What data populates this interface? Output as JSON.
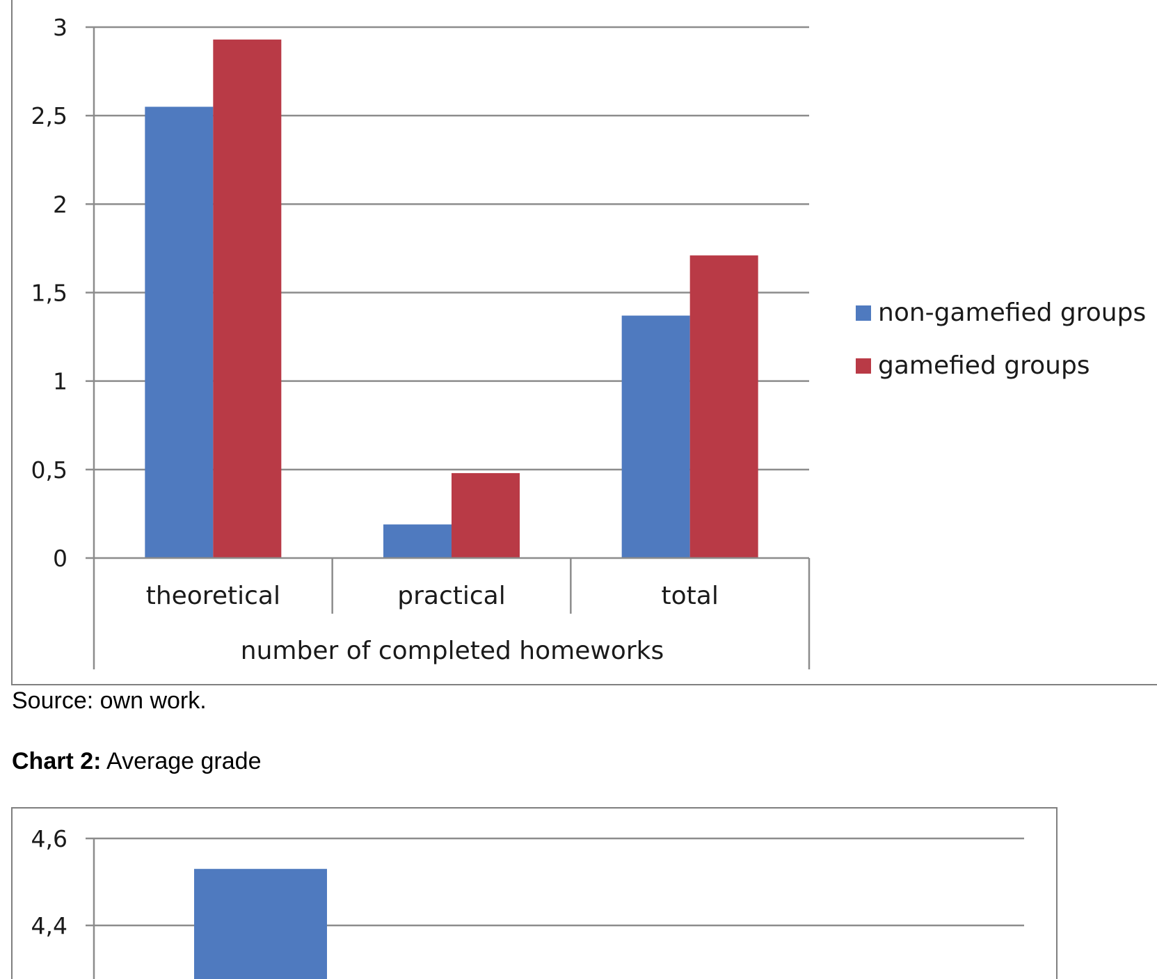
{
  "source_note": "Source: own work.",
  "chart2_caption": {
    "label": "Chart 2:",
    "title": "Average grade"
  },
  "colors": {
    "series1": "#4f7abf",
    "series2": "#b93a46",
    "grid": "#8c8c8c",
    "frame": "#7f7f7f"
  },
  "chart_data": [
    {
      "type": "bar",
      "categories": [
        "theoretical",
        "practical",
        "total"
      ],
      "group_label": "number of completed homeworks",
      "series": [
        {
          "name": "non-gamefied groups",
          "values": [
            2.55,
            0.19,
            1.37
          ]
        },
        {
          "name": "gamefied groups",
          "values": [
            2.93,
            0.48,
            1.71
          ]
        }
      ],
      "ylim": [
        0,
        3
      ],
      "yticks": [
        "0",
        "0,5",
        "1",
        "1,5",
        "2",
        "2,5",
        "3"
      ],
      "ytick_values": [
        0,
        0.5,
        1,
        1.5,
        2,
        2.5,
        3
      ],
      "grid": true,
      "legend": "right"
    },
    {
      "type": "bar",
      "series": [
        {
          "values": [
            4.53
          ]
        }
      ],
      "ytick_values": [
        4.4,
        4.6
      ],
      "yticks": [
        "4,4",
        "4,6"
      ],
      "grid": true
    }
  ]
}
